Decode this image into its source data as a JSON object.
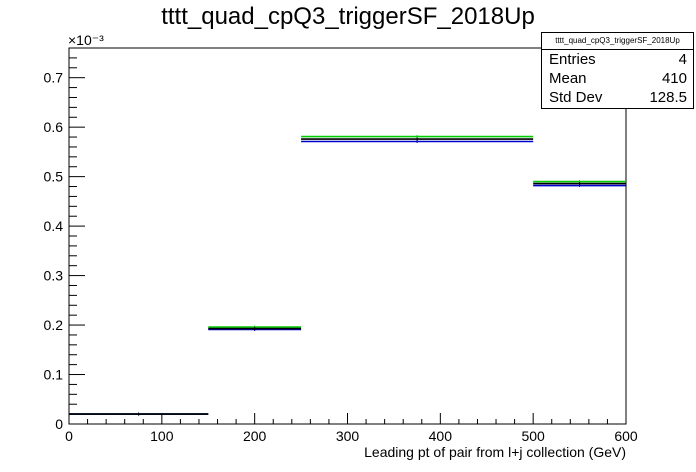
{
  "chart_data": {
    "type": "bar",
    "title": "tttt_quad_cpQ3_triggerSF_2018Up",
    "xlabel": "Leading pt of pair from l+j collection (GeV)",
    "ylabel": "",
    "y_exponent_label": "×10⁻³",
    "xlim": [
      0,
      600
    ],
    "ylim": [
      0,
      0.00076
    ],
    "x_ticks": [
      0,
      100,
      200,
      300,
      400,
      500,
      600
    ],
    "y_ticks": [
      0,
      0.1,
      0.2,
      0.3,
      0.4,
      0.5,
      0.6,
      0.7
    ],
    "y_tick_labels": [
      "0",
      "0.1",
      "0.2",
      "0.3",
      "0.4",
      "0.5",
      "0.6",
      "0.7"
    ],
    "bin_edges": [
      0,
      150,
      250,
      500,
      600
    ],
    "series": [
      {
        "color": "#000000",
        "values": [
          2e-05,
          0.000193,
          0.000576,
          0.000486
        ]
      },
      {
        "color": "#00cc00",
        "values": [
          2e-05,
          0.000196,
          0.000581,
          0.00049
        ]
      },
      {
        "color": "#0000cc",
        "values": [
          2e-05,
          0.000191,
          0.000571,
          0.000482
        ]
      }
    ],
    "grid": false,
    "legend": "none"
  },
  "stats": {
    "title": "tttt_quad_cpQ3_triggerSF_2018Up",
    "rows": [
      {
        "label": "Entries",
        "value": "4"
      },
      {
        "label": "Mean",
        "value": "410"
      },
      {
        "label": "Std Dev",
        "value": "128.5"
      }
    ]
  }
}
